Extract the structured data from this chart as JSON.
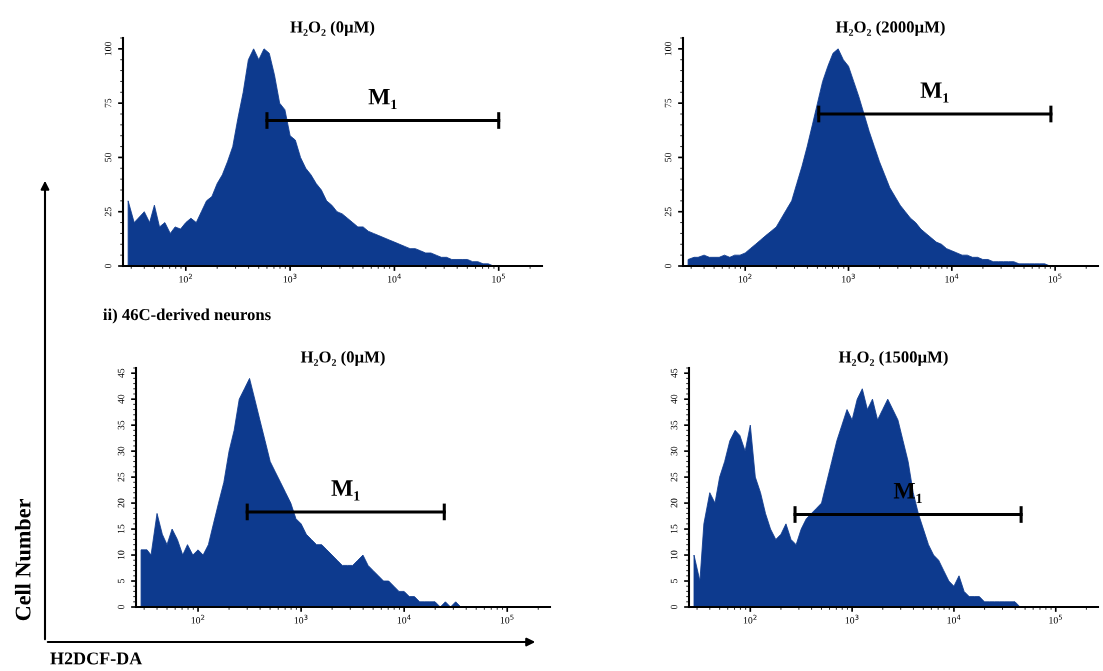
{
  "chart_data": [
    {
      "type": "area",
      "title": "H₂O₂ (0µM)",
      "color": "#0d3a8e",
      "log": "x",
      "xlim": [
        25,
        260000
      ],
      "ylim": [
        0,
        105
      ],
      "xticks": [
        {
          "value": 100,
          "label": "10$^{2}$"
        },
        {
          "value": 1000,
          "label": "10$^{3}$"
        },
        {
          "value": 10000,
          "label": "10$^{4}$"
        },
        {
          "value": 100000,
          "label": "10$^{5}$"
        }
      ],
      "yticks": [
        0,
        25,
        50,
        75,
        100
      ],
      "x": [
        28,
        32,
        35,
        40,
        45,
        50,
        56,
        63,
        71,
        79,
        89,
        100,
        112,
        126,
        141,
        158,
        178,
        200,
        224,
        251,
        282,
        316,
        355,
        398,
        447,
        501,
        562,
        631,
        708,
        794,
        891,
        1000,
        1122,
        1259,
        1413,
        1585,
        1778,
        1995,
        2239,
        2512,
        2818,
        3162,
        3548,
        3981,
        4467,
        5012,
        5623,
        6310,
        7079,
        7943,
        8913,
        10000,
        11220,
        12589,
        14125,
        15849,
        17783,
        19953,
        22387,
        25119,
        28184,
        31623,
        35481,
        39811,
        44668,
        50119,
        56234,
        63096,
        70795,
        79433,
        89125,
        100000
      ],
      "series": [
        {
          "values": [
            30,
            20,
            22,
            25,
            20,
            28,
            18,
            20,
            15,
            18,
            17,
            20,
            22,
            20,
            25,
            30,
            32,
            38,
            42,
            48,
            55,
            68,
            80,
            95,
            100,
            95,
            100,
            98,
            88,
            75,
            72,
            60,
            58,
            50,
            45,
            42,
            38,
            35,
            30,
            28,
            25,
            24,
            22,
            20,
            18,
            18,
            16,
            15,
            14,
            13,
            12,
            11,
            10,
            9,
            8,
            8,
            7,
            6,
            6,
            5,
            4,
            4,
            3,
            3,
            3,
            3,
            2,
            2,
            1,
            1,
            0,
            0
          ]
        },
        {
          "type": "line",
          "name": "M₁",
          "color": "#000000",
          "x": [
            600,
            100000
          ],
          "values": [
            67,
            67
          ]
        }
      ]
    },
    {
      "type": "area",
      "title": "H₂O₂ (2000µM)",
      "color": "#0d3a8e",
      "log": "x",
      "xlim": [
        25,
        260000
      ],
      "ylim": [
        0,
        105
      ],
      "xticks": [
        {
          "value": 100,
          "label": "10$^{2}$"
        },
        {
          "value": 1000,
          "label": "10$^{3}$"
        },
        {
          "value": 10000,
          "label": "10$^{4}$"
        },
        {
          "value": 100000,
          "label": "10$^{5}$"
        }
      ],
      "yticks": [
        0,
        25,
        50,
        75,
        100
      ],
      "x": [
        28,
        32,
        35,
        40,
        45,
        50,
        56,
        63,
        71,
        79,
        89,
        100,
        112,
        126,
        141,
        158,
        178,
        200,
        224,
        251,
        282,
        316,
        355,
        398,
        447,
        501,
        562,
        631,
        708,
        794,
        891,
        1000,
        1122,
        1259,
        1413,
        1585,
        1778,
        1995,
        2239,
        2512,
        2818,
        3162,
        3548,
        3981,
        4467,
        5012,
        5623,
        6310,
        7079,
        7943,
        8913,
        10000,
        11220,
        12589,
        14125,
        15849,
        17783,
        19953,
        22387,
        25119,
        28184,
        31623,
        35481,
        39811,
        44668,
        50119,
        56234,
        63096,
        70795,
        79433,
        89125,
        100000
      ],
      "series": [
        {
          "values": [
            3,
            4,
            4,
            5,
            4,
            4,
            4,
            5,
            4,
            5,
            5,
            6,
            8,
            10,
            12,
            14,
            16,
            18,
            22,
            26,
            30,
            38,
            46,
            55,
            65,
            75,
            85,
            92,
            98,
            100,
            95,
            92,
            85,
            78,
            70,
            62,
            55,
            48,
            42,
            36,
            32,
            28,
            25,
            22,
            20,
            17,
            15,
            13,
            11,
            10,
            8,
            7,
            6,
            5,
            5,
            4,
            4,
            3,
            3,
            2,
            2,
            2,
            2,
            2,
            1,
            1,
            1,
            1,
            1,
            1,
            0,
            0
          ]
        },
        {
          "type": "line",
          "name": "M₁",
          "color": "#000000",
          "x": [
            515,
            91000
          ],
          "values": [
            70,
            70
          ]
        }
      ]
    },
    {
      "type": "area",
      "title": "H₂O₂ (0µM)",
      "xlabel": "H2DCF-DA",
      "ylabel": "Cell Number",
      "annotations": [
        "ii) 46C-derived neurons"
      ],
      "color": "#0d3a8e",
      "log": "x",
      "xlim": [
        25,
        260000
      ],
      "ylim": [
        0,
        46
      ],
      "xticks": [
        {
          "value": 100,
          "label": "10$^{2}$"
        },
        {
          "value": 1000,
          "label": "10$^{3}$"
        },
        {
          "value": 10000,
          "label": "10$^{4}$"
        },
        {
          "value": 100000,
          "label": "10$^{5}$"
        }
      ],
      "yticks": [
        0,
        5,
        10,
        15,
        20,
        25,
        30,
        35,
        40,
        45
      ],
      "x": [
        28,
        32,
        35,
        40,
        45,
        50,
        56,
        63,
        71,
        79,
        89,
        100,
        112,
        126,
        141,
        158,
        178,
        200,
        224,
        251,
        282,
        316,
        355,
        398,
        447,
        501,
        562,
        631,
        708,
        794,
        891,
        1000,
        1122,
        1259,
        1413,
        1585,
        1778,
        1995,
        2239,
        2512,
        2818,
        3162,
        3548,
        3981,
        4467,
        5012,
        5623,
        6310,
        7079,
        7943,
        8913,
        10000,
        11220,
        12589,
        14125,
        15849,
        17783,
        19953,
        22387,
        25119,
        28184,
        31623,
        35481,
        39811,
        44668,
        50119,
        56234,
        63096,
        70795,
        79433,
        89125,
        100000
      ],
      "series": [
        {
          "values": [
            11,
            11,
            10,
            18,
            14,
            12,
            15,
            13,
            10,
            12,
            10,
            11,
            10,
            12,
            16,
            20,
            24,
            30,
            34,
            40,
            42,
            44,
            40,
            36,
            32,
            28,
            26,
            24,
            22,
            20,
            17,
            16,
            14,
            13,
            12,
            12,
            11,
            10,
            9,
            8,
            8,
            8,
            9,
            10,
            8,
            7,
            6,
            5,
            5,
            4,
            3,
            3,
            2,
            2,
            1,
            1,
            1,
            1,
            0,
            1,
            0,
            1,
            0,
            0,
            0,
            0,
            0,
            0,
            0,
            0,
            0,
            0
          ]
        },
        {
          "type": "line",
          "name": "M₁",
          "color": "#000000",
          "x": [
            300,
            24500
          ],
          "values": [
            18.3,
            18.3
          ]
        }
      ]
    },
    {
      "type": "area",
      "title": "H₂O₂ (1500µM)",
      "color": "#0d3a8e",
      "log": "x",
      "xlim": [
        25,
        260000
      ],
      "ylim": [
        0,
        46
      ],
      "xticks": [
        {
          "value": 100,
          "label": "10$^{2}$"
        },
        {
          "value": 1000,
          "label": "10$^{3}$"
        },
        {
          "value": 10000,
          "label": "10$^{4}$"
        },
        {
          "value": 100000,
          "label": "10$^{5}$"
        }
      ],
      "yticks": [
        0,
        5,
        10,
        15,
        20,
        25,
        30,
        35,
        40,
        45
      ],
      "x": [
        28,
        32,
        35,
        40,
        45,
        50,
        56,
        63,
        71,
        79,
        89,
        100,
        112,
        126,
        141,
        158,
        178,
        200,
        224,
        251,
        282,
        316,
        355,
        398,
        447,
        501,
        562,
        631,
        708,
        794,
        891,
        1000,
        1122,
        1259,
        1413,
        1585,
        1778,
        1995,
        2239,
        2512,
        2818,
        3162,
        3548,
        3981,
        4467,
        5012,
        5623,
        6310,
        7079,
        7943,
        8913,
        10000,
        11220,
        12589,
        14125,
        15849,
        17783,
        19953,
        22387,
        25119,
        28184,
        31623,
        35481,
        39811,
        44668,
        50119,
        56234,
        63096,
        70795,
        79433,
        89125,
        100000
      ],
      "series": [
        {
          "values": [
            10,
            5,
            16,
            22,
            20,
            25,
            28,
            32,
            34,
            33,
            30,
            35,
            25,
            22,
            18,
            15,
            13,
            14,
            16,
            13,
            12,
            15,
            17,
            18,
            19,
            20,
            24,
            28,
            32,
            35,
            38,
            36,
            40,
            42,
            38,
            40,
            36,
            38,
            40,
            38,
            36,
            32,
            28,
            22,
            18,
            15,
            12,
            10,
            9,
            7,
            5,
            4,
            6,
            3,
            2,
            2,
            2,
            1,
            1,
            1,
            1,
            1,
            1,
            1,
            0,
            0,
            0,
            0,
            0,
            0,
            0,
            0
          ]
        },
        {
          "type": "line",
          "name": "M₁",
          "color": "#000000",
          "x": [
            275,
            45700
          ],
          "values": [
            17.8,
            17.8
          ]
        }
      ]
    }
  ]
}
